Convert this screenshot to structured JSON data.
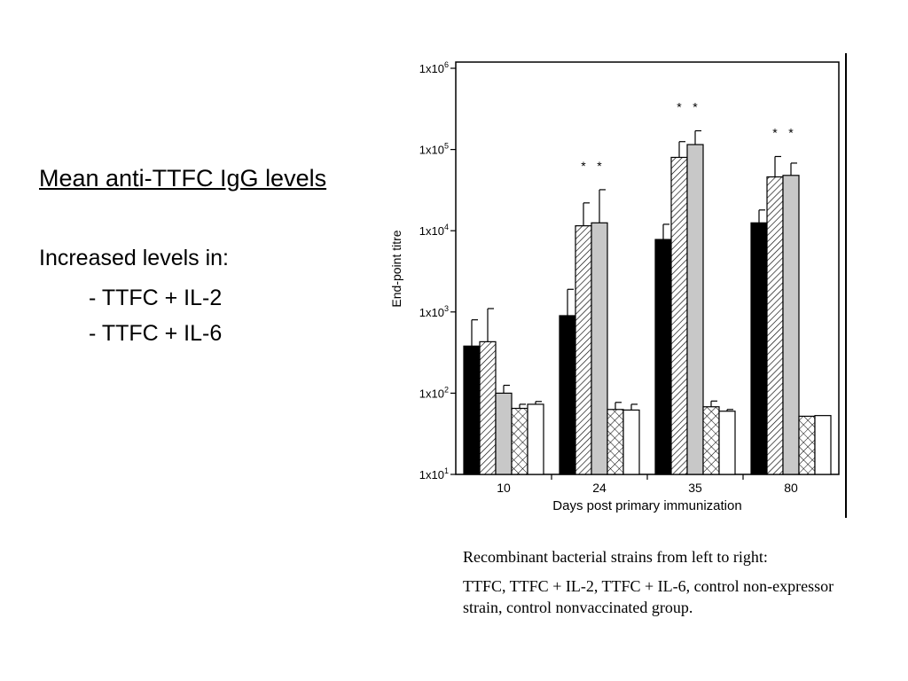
{
  "slide": {
    "title": "Mean anti-TTFC IgG levels",
    "intro": "Increased levels in:",
    "bullets": [
      "- TTFC + IL-2",
      "- TTFC + IL-6"
    ]
  },
  "caption": {
    "heading": "Recombinant bacterial strains from left to right:",
    "strains": "TTFC, TTFC + IL-2, TTFC + IL-6, control non-expressor strain, control nonvaccinated group."
  },
  "chart_data": {
    "type": "bar",
    "scale": "log",
    "xlabel": "Days post primary immunization",
    "ylabel": "End-point titre",
    "categories": [
      "10",
      "24",
      "35",
      "80"
    ],
    "ylim": [
      10,
      1000000
    ],
    "y_ticks": [
      {
        "value": 10,
        "label": "1x10",
        "exp": "1"
      },
      {
        "value": 100,
        "label": "1x10",
        "exp": "2"
      },
      {
        "value": 1000,
        "label": "1x10",
        "exp": "3"
      },
      {
        "value": 10000,
        "label": "1x10",
        "exp": "4"
      },
      {
        "value": 100000,
        "label": "1x10",
        "exp": "5"
      },
      {
        "value": 1000000,
        "label": "1x10",
        "exp": "6"
      }
    ],
    "series": [
      {
        "pattern": "solid-black",
        "values": [
          380,
          900,
          7800,
          12500
        ],
        "error_upper": [
          800,
          1900,
          12000,
          18000
        ]
      },
      {
        "pattern": "diagonal-hatch",
        "values": [
          430,
          11500,
          80000,
          46000
        ],
        "error_upper": [
          1100,
          22000,
          125000,
          82000
        ]
      },
      {
        "pattern": "solid-gray",
        "values": [
          100,
          12500,
          115000,
          48000
        ],
        "error_upper": [
          125,
          32000,
          170000,
          68000
        ]
      },
      {
        "pattern": "cross-hatch",
        "values": [
          65,
          63,
          68,
          52
        ],
        "error_upper": [
          73,
          77,
          80,
          null
        ]
      },
      {
        "pattern": "white",
        "values": [
          73,
          62,
          60,
          53
        ],
        "error_upper": [
          79,
          73,
          63,
          null
        ]
      }
    ],
    "significance": [
      {
        "category": "24",
        "series": [
          1,
          2
        ],
        "mark": "*"
      },
      {
        "category": "35",
        "series": [
          1,
          2
        ],
        "mark": "*"
      },
      {
        "category": "80",
        "series": [
          1,
          2
        ],
        "mark": "*"
      }
    ],
    "grid": false,
    "legend": "none"
  }
}
